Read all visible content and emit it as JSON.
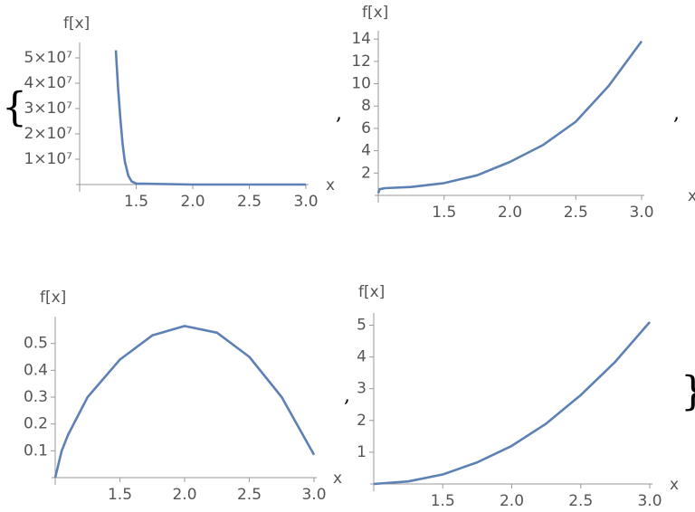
{
  "chart_data": [
    {
      "type": "line",
      "xlabel": "x",
      "ylabel": "f[x]",
      "color": "#5e81b5",
      "x": [
        1.32,
        1.34,
        1.36,
        1.38,
        1.4,
        1.43,
        1.46,
        1.5,
        2,
        2.5,
        3
      ],
      "values": [
        53000000,
        38000000,
        26000000,
        16000000,
        9000000,
        3500000,
        1200000,
        400000,
        0,
        0,
        0
      ],
      "xlim": [
        1,
        3
      ],
      "ylim": [
        0,
        55000000
      ],
      "xticks": [
        1.5,
        {
          "value": 2,
          "label": "2.0"
        },
        2.5,
        {
          "value": 3,
          "label": "3.0"
        }
      ],
      "yticks": [
        {
          "value": 10000000,
          "label": "1×10⁷"
        },
        {
          "value": 20000000,
          "label": "2×10⁷"
        },
        {
          "value": 30000000,
          "label": "3×10⁷"
        },
        {
          "value": 40000000,
          "label": "4×10⁷"
        },
        {
          "value": 50000000,
          "label": "5×10⁷"
        }
      ]
    },
    {
      "type": "line",
      "xlabel": "x",
      "ylabel": "f[x]",
      "color": "#5e81b5",
      "x": [
        1,
        1.01,
        1.05,
        1.25,
        1.5,
        1.75,
        2,
        2.25,
        2.5,
        2.75,
        3
      ],
      "values": [
        0.2,
        0.55,
        0.65,
        0.75,
        1.1,
        1.8,
        3.0,
        4.5,
        6.6,
        9.8,
        13.8
      ],
      "xlim": [
        1,
        3
      ],
      "ylim": [
        0,
        14.5
      ],
      "xticks": [
        1.5,
        {
          "value": 2,
          "label": "2.0"
        },
        2.5,
        {
          "value": 3,
          "label": "3.0"
        }
      ],
      "yticks": [
        2,
        4,
        6,
        8,
        10,
        12,
        14
      ]
    },
    {
      "type": "line",
      "xlabel": "x",
      "ylabel": "f[x]",
      "color": "#5e81b5",
      "x": [
        1,
        1.05,
        1.1,
        1.25,
        1.5,
        1.75,
        2,
        2.25,
        2.5,
        2.75,
        3
      ],
      "values": [
        0,
        0.1,
        0.16,
        0.3,
        0.44,
        0.53,
        0.565,
        0.54,
        0.45,
        0.3,
        0.085
      ],
      "xlim": [
        1,
        3
      ],
      "ylim": [
        0,
        0.59
      ],
      "xticks": [
        1.5,
        {
          "value": 2,
          "label": "2.0"
        },
        2.5,
        {
          "value": 3,
          "label": "3.0"
        }
      ],
      "yticks": [
        0.1,
        0.2,
        0.3,
        0.4,
        0.5
      ]
    },
    {
      "type": "line",
      "xlabel": "x",
      "ylabel": "f[x]",
      "color": "#5e81b5",
      "x": [
        1,
        1.25,
        1.5,
        1.75,
        2,
        2.25,
        2.5,
        2.75,
        3
      ],
      "values": [
        0,
        0.08,
        0.3,
        0.68,
        1.2,
        1.9,
        2.8,
        3.85,
        5.1
      ],
      "xlim": [
        1,
        3
      ],
      "ylim": [
        0,
        5.3
      ],
      "xticks": [
        1.5,
        {
          "value": 2,
          "label": "2.0"
        },
        2.5,
        {
          "value": 3,
          "label": "3.0"
        }
      ],
      "yticks": [
        1,
        2,
        3,
        4,
        5
      ]
    }
  ],
  "punctuation": {
    "open": "{",
    "separators": [
      ",",
      ",",
      ","
    ],
    "close": "}"
  }
}
